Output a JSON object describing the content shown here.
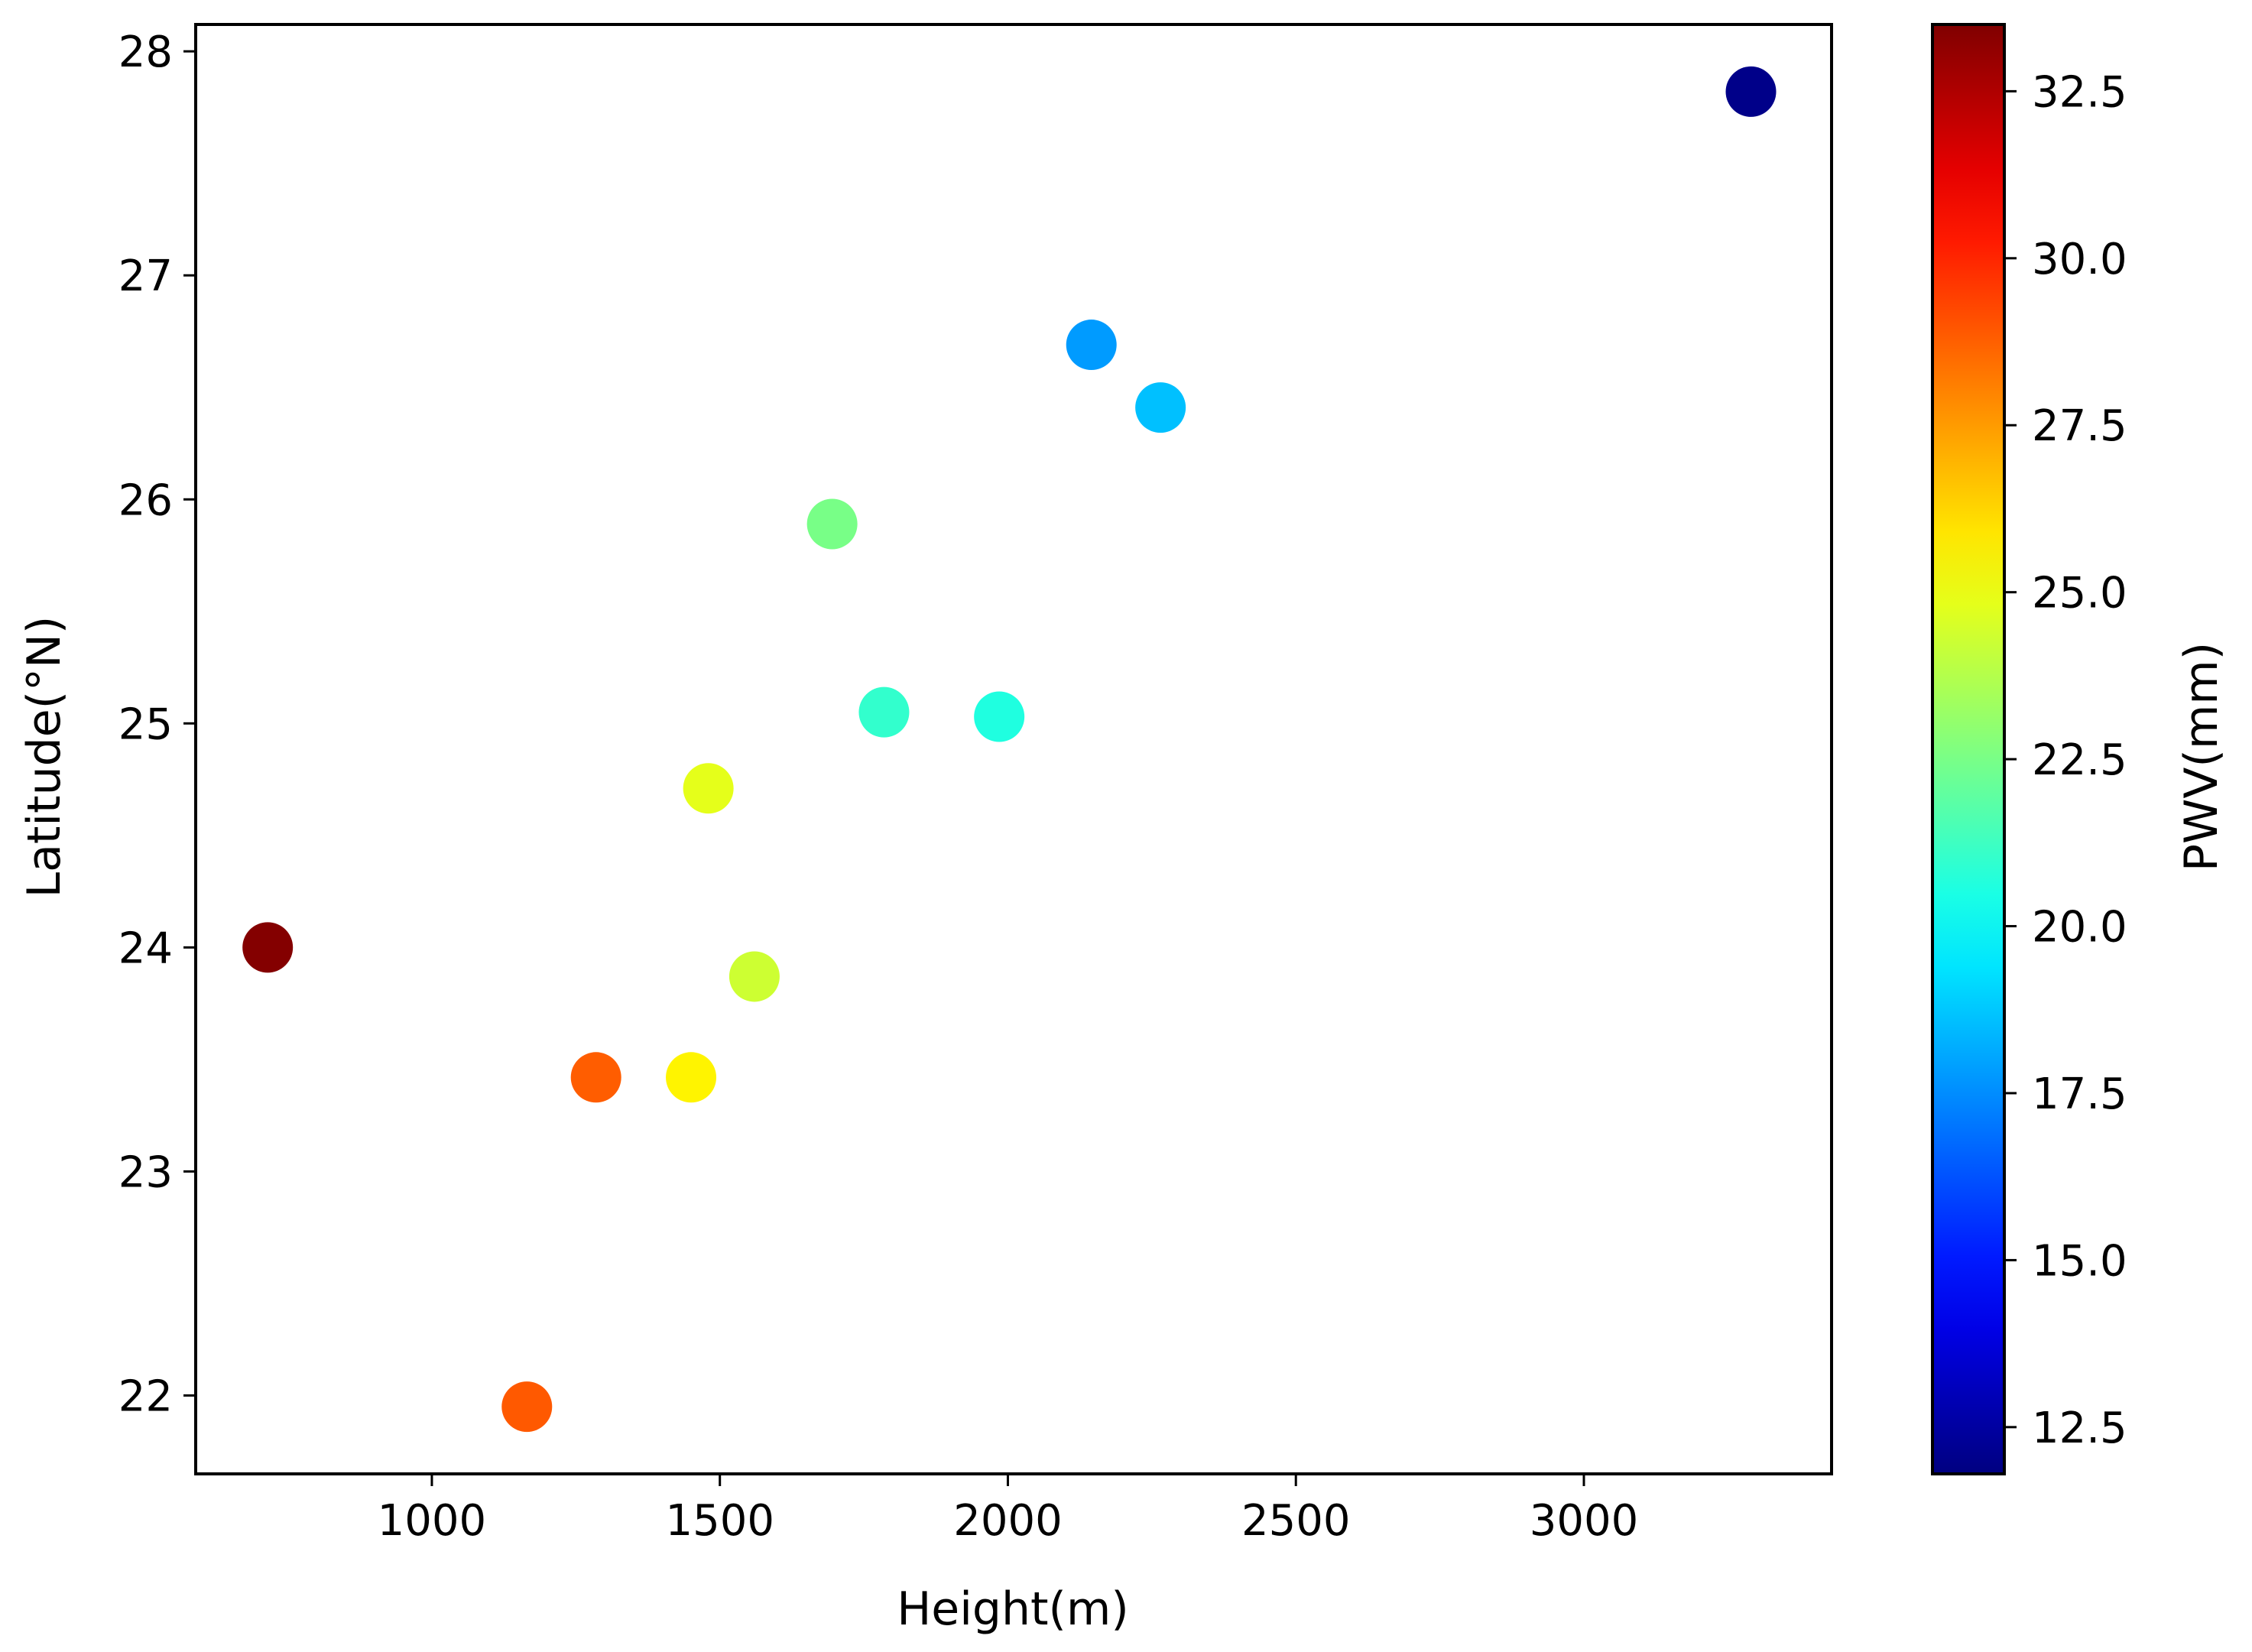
{
  "chart_data": {
    "type": "scatter",
    "title": "",
    "xlabel": "Height(m)",
    "ylabel": "Latitude(°N)",
    "xlim": [
      590,
      3430
    ],
    "ylim": [
      21.65,
      28.12
    ],
    "xticks": [
      1000,
      1500,
      2000,
      2500,
      3000
    ],
    "yticks": [
      22,
      23,
      24,
      25,
      26,
      27,
      28
    ],
    "grid": false,
    "colorbar": {
      "label": "PWV(mm)",
      "colormap": "jet",
      "range": [
        11.8,
        33.5
      ],
      "ticks": [
        "12.5",
        "15.0",
        "17.5",
        "20.0",
        "22.5",
        "25.0",
        "27.5",
        "30.0",
        "32.5"
      ]
    },
    "points": [
      {
        "x": 715,
        "y": 24.0,
        "pwv": 33.4
      },
      {
        "x": 1165,
        "y": 21.95,
        "pwv": 28.9
      },
      {
        "x": 1285,
        "y": 23.42,
        "pwv": 28.8
      },
      {
        "x": 1450,
        "y": 23.42,
        "pwv": 25.6
      },
      {
        "x": 1480,
        "y": 24.71,
        "pwv": 24.8
      },
      {
        "x": 1560,
        "y": 23.87,
        "pwv": 24.3
      },
      {
        "x": 1695,
        "y": 25.89,
        "pwv": 22.5
      },
      {
        "x": 1785,
        "y": 25.05,
        "pwv": 21.0
      },
      {
        "x": 1985,
        "y": 25.03,
        "pwv": 20.6
      },
      {
        "x": 2145,
        "y": 26.69,
        "pwv": 17.8
      },
      {
        "x": 2265,
        "y": 26.41,
        "pwv": 18.6
      },
      {
        "x": 3290,
        "y": 27.82,
        "pwv": 12.0
      }
    ]
  }
}
